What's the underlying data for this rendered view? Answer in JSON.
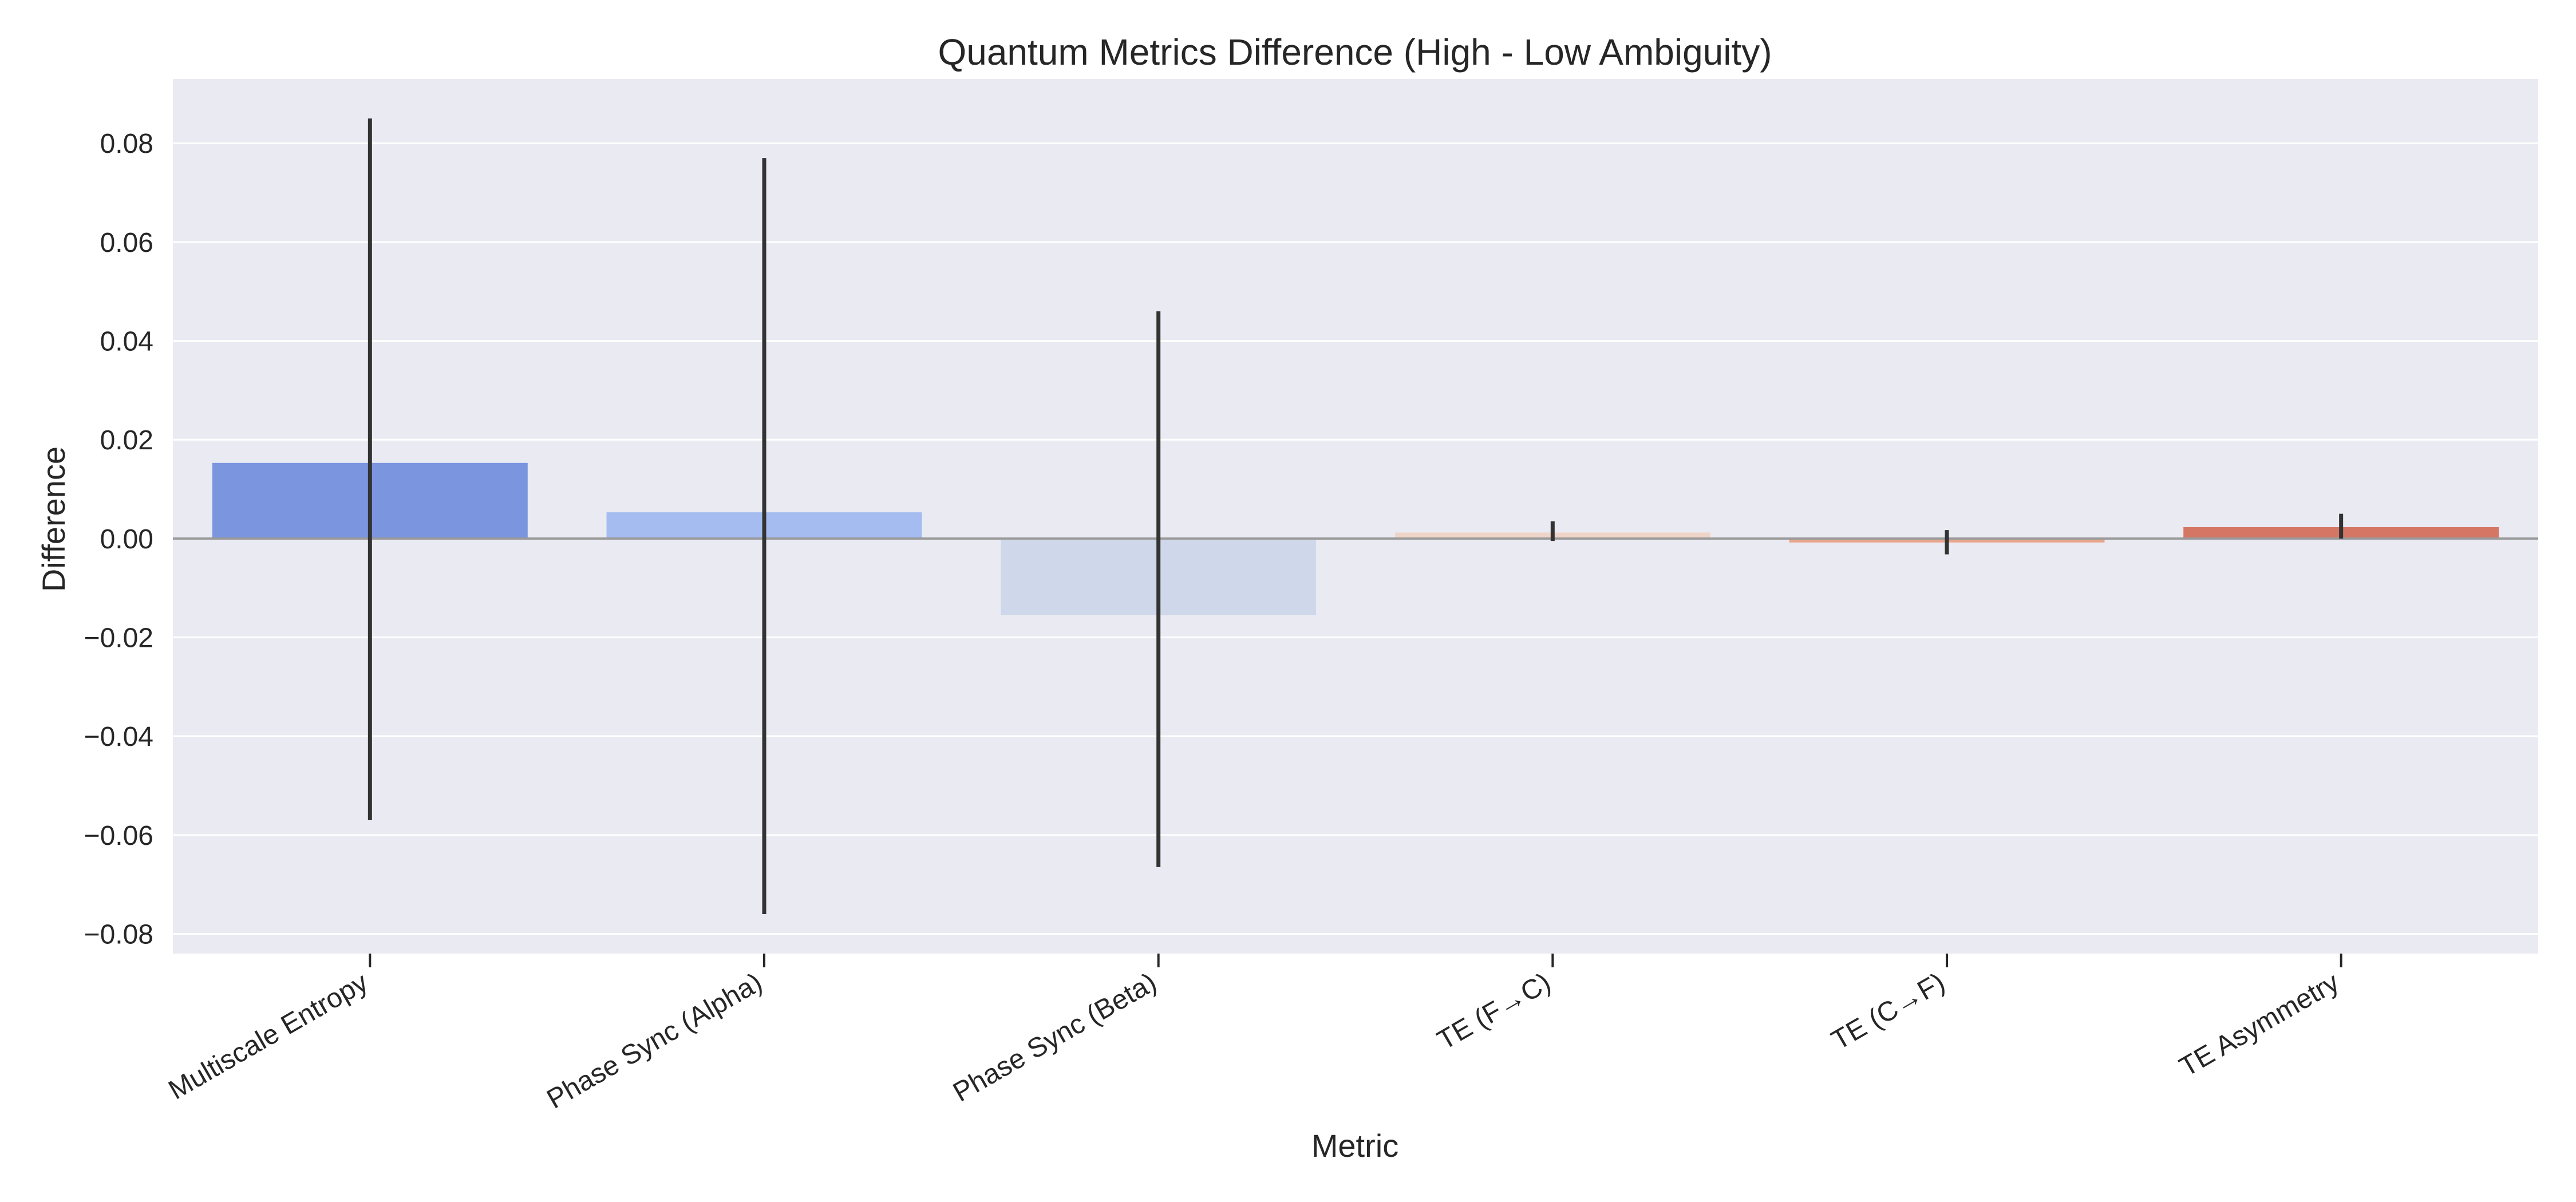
{
  "chart_data": {
    "type": "bar",
    "title": "Quantum Metrics Difference (High - Low Ambiguity)",
    "xlabel": "Metric",
    "ylabel": "Difference",
    "categories": [
      "Multiscale Entropy",
      "Phase Sync (Alpha)",
      "Phase Sync (Beta)",
      "TE (F→C)",
      "TE (C→F)",
      "TE Asymmetry"
    ],
    "values": [
      0.0153,
      0.0053,
      -0.0155,
      0.0012,
      -0.0008,
      0.0023
    ],
    "error_low": [
      -0.057,
      -0.076,
      -0.0665,
      -0.0005,
      -0.0032,
      0.0
    ],
    "error_high": [
      0.085,
      0.077,
      0.046,
      0.0035,
      0.0017,
      0.005
    ],
    "bar_colors": [
      "#7b96df",
      "#a4bcf0",
      "#cfd8ea",
      "#efd4c8",
      "#e9a68c",
      "#d57665"
    ],
    "ylim": [
      -0.084,
      0.093
    ],
    "yticks": [
      -0.08,
      -0.06,
      -0.04,
      -0.02,
      0.0,
      0.02,
      0.04,
      0.06,
      0.08
    ],
    "ytick_labels": [
      "−0.08",
      "−0.06",
      "−0.04",
      "−0.02",
      "0.00",
      "0.02",
      "0.04",
      "0.06",
      "0.08"
    ],
    "grid": true,
    "background_color": "#eaeaf2",
    "error_color": "#333333",
    "zero_line_color": "#9a9a9a"
  }
}
